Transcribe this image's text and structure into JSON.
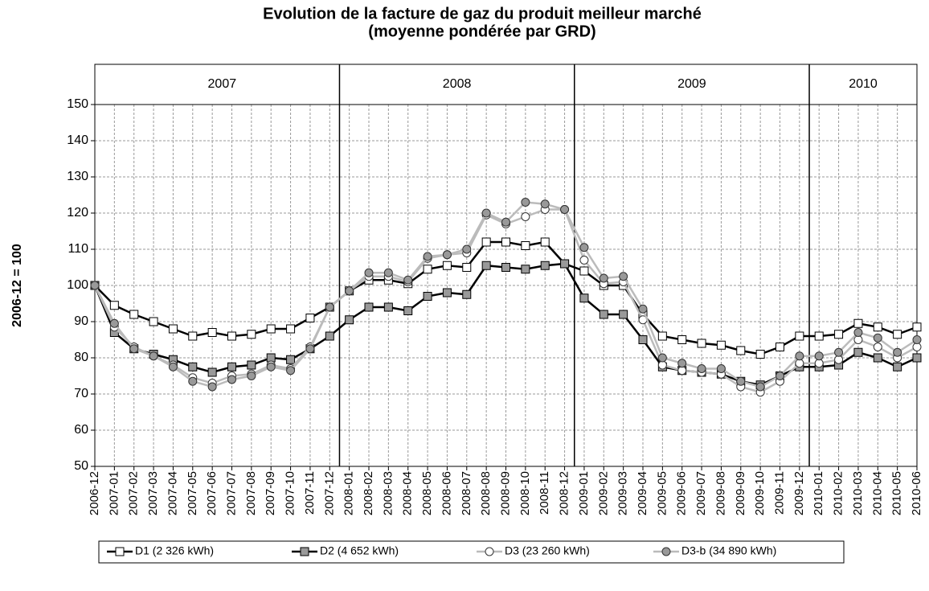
{
  "chart_data": {
    "type": "line",
    "title": "Evolution de la facture de gaz du produit meilleur marché",
    "subtitle": "(moyenne pondérée par GRD)",
    "y_label": "2006-12 = 100",
    "year_labels": [
      "2007",
      "2008",
      "2009",
      "2010"
    ],
    "categories": [
      "2006-12",
      "2007-01",
      "2007-02",
      "2007-03",
      "2007-04",
      "2007-05",
      "2007-06",
      "2007-07",
      "2007-08",
      "2007-09",
      "2007-10",
      "2007-11",
      "2007-12",
      "2008-01",
      "2008-02",
      "2008-03",
      "2008-04",
      "2008-05",
      "2008-06",
      "2008-07",
      "2008-08",
      "2008-09",
      "2008-10",
      "2008-11",
      "2008-12",
      "2009-01",
      "2009-02",
      "2009-03",
      "2009-04",
      "2009-05",
      "2009-06",
      "2009-07",
      "2009-08",
      "2009-09",
      "2009-10",
      "2009-11",
      "2009-12",
      "2010-01",
      "2010-02",
      "2010-03",
      "2010-04",
      "2010-05",
      "2010-06"
    ],
    "series": [
      {
        "name": "D1 (2 326 kWh)",
        "color": "#000000",
        "marker_fill": "#ffffff",
        "marker": "square",
        "values": [
          100,
          94.5,
          92,
          90,
          88,
          86,
          87,
          86,
          86.5,
          88,
          88,
          91,
          94,
          98.5,
          101.5,
          101.5,
          100.5,
          104.5,
          105.5,
          105,
          112,
          112,
          111,
          112,
          106,
          104,
          100,
          100,
          92,
          86,
          85,
          84,
          83.5,
          82,
          81,
          83,
          86,
          86,
          86.5,
          89.5,
          88.5,
          86.5,
          88.5
        ]
      },
      {
        "name": "D2 (4 652 kWh)",
        "color": "#000000",
        "marker_fill": "#999999",
        "marker": "square",
        "values": [
          100,
          87,
          82.5,
          81,
          79.5,
          77.5,
          76,
          77.5,
          78,
          80,
          79.5,
          82.5,
          86,
          90.5,
          94,
          94,
          93,
          97,
          98,
          97.5,
          105.5,
          105,
          104.5,
          105.5,
          106,
          96.5,
          92,
          92,
          85,
          77.5,
          76.5,
          76,
          75.5,
          73.5,
          72.5,
          75,
          77.5,
          77.5,
          78,
          81.5,
          80,
          77.5,
          80
        ]
      },
      {
        "name": "D3 (23 260 kWh)",
        "color": "#bbbbbb",
        "marker_fill": "#ffffff",
        "marker": "circle",
        "values": [
          100,
          88.5,
          83,
          80.5,
          78,
          74.5,
          73,
          75,
          75.5,
          78,
          77,
          83,
          94,
          98.5,
          102.5,
          102.5,
          101,
          107.5,
          108.5,
          109,
          119.5,
          117,
          119,
          121,
          121,
          107,
          100.5,
          101,
          90.5,
          78,
          76.5,
          76,
          75.5,
          72,
          70.5,
          73.5,
          78.5,
          78.5,
          79.5,
          85,
          83,
          80,
          83
        ]
      },
      {
        "name": "D3-b (34 890 kWh)",
        "color": "#bbbbbb",
        "marker_fill": "#999999",
        "marker": "circle",
        "values": [
          100,
          89.5,
          82.5,
          80.5,
          77.5,
          73.5,
          72,
          74,
          75,
          77.5,
          76.5,
          82.5,
          94,
          98.5,
          103.5,
          103.5,
          101.5,
          108,
          108.5,
          110,
          120,
          117.5,
          123,
          122.5,
          121,
          110.5,
          102,
          102.5,
          93.5,
          80,
          78.5,
          77,
          77,
          73.5,
          72,
          75,
          80.5,
          80.5,
          81.5,
          87,
          85.5,
          81.5,
          85
        ]
      }
    ],
    "ylim": [
      50,
      150
    ],
    "yticks": [
      50,
      60,
      70,
      80,
      90,
      100,
      110,
      120,
      130,
      140,
      150
    ],
    "grid": true
  }
}
